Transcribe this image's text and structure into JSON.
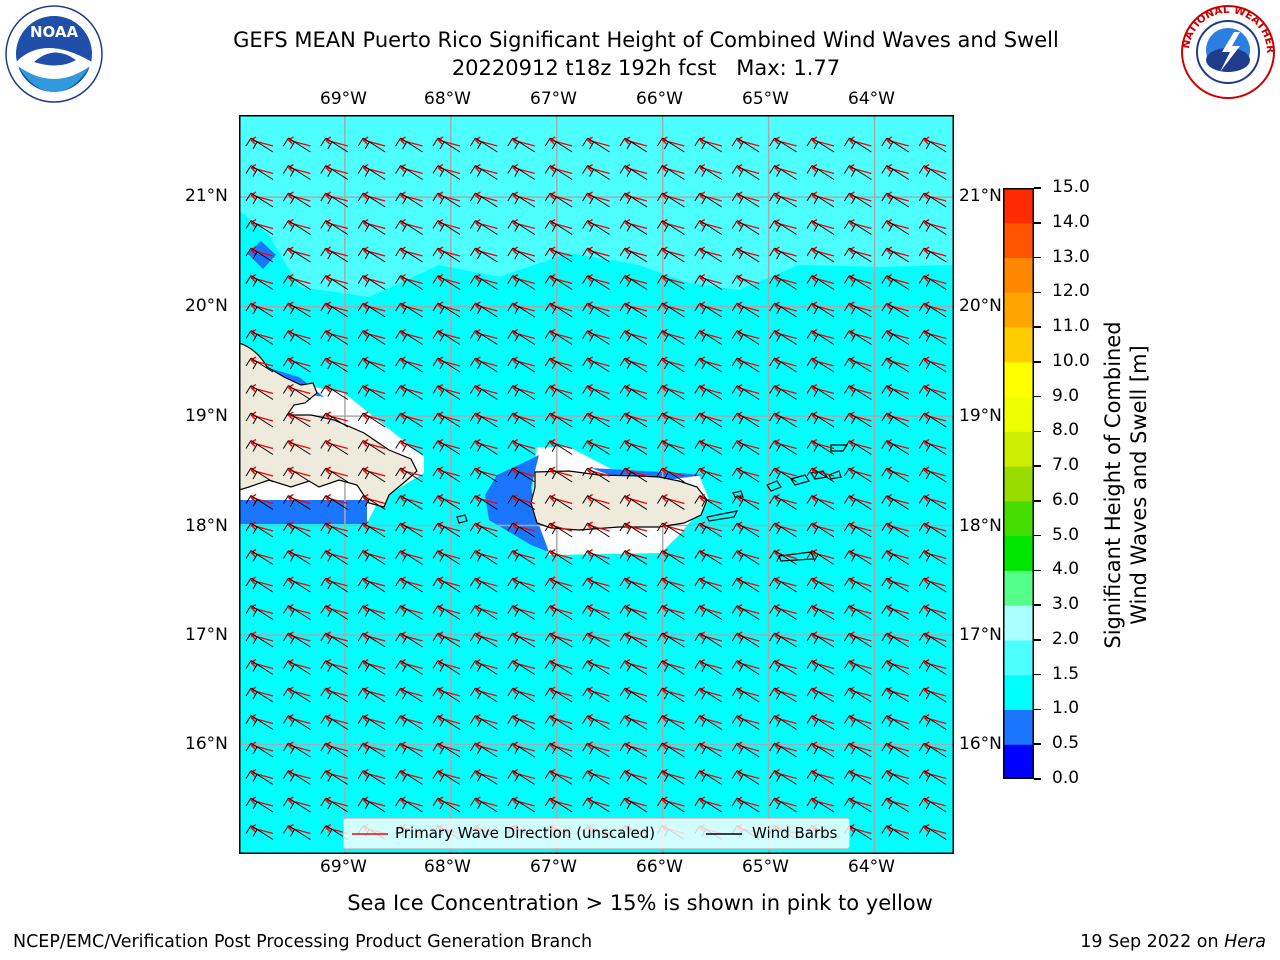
{
  "title": {
    "line1": "GEFS MEAN Puerto Rico Significant Height of Combined Wind Waves and Swell",
    "line2": "20220912 t18z 192h fcst   Max: 1.77"
  },
  "logos": {
    "left": {
      "name": "noaa-logo",
      "text": "NOAA",
      "ring_text": "NATIONAL OCEANIC AND ATMOSPHERIC ADMINISTRATION · U.S. DEPARTMENT OF COMMERCE"
    },
    "right": {
      "name": "nws-logo",
      "ring_text": "NATIONAL WEATHER SERVICE"
    }
  },
  "map": {
    "lon_labels": [
      "69°W",
      "68°W",
      "67°W",
      "66°W",
      "65°W",
      "64°W"
    ],
    "lat_labels": [
      "21°N",
      "20°N",
      "19°N",
      "18°N",
      "17°N",
      "16°N"
    ],
    "lon_range": [
      -70.0,
      -63.25
    ],
    "lat_range": [
      15.0,
      21.75
    ],
    "background_color": "#00ffff",
    "land_color": "#eeebdc",
    "wave_arrow_color": "#ff0000",
    "wind_barb_color": "#000000",
    "legend": {
      "wave": "Primary Wave Direction (unscaled)",
      "wind": "Wind Barbs"
    }
  },
  "colorbar": {
    "label_line1": "Significant Height of Combined",
    "label_line2": "Wind Waves and Swell [m]",
    "ticks": [
      "0.0",
      "0.5",
      "1.0",
      "1.5",
      "2.0",
      "3.0",
      "4.0",
      "5.0",
      "6.0",
      "7.0",
      "8.0",
      "9.0",
      "10.0",
      "11.0",
      "12.0",
      "13.0",
      "14.0",
      "15.0"
    ],
    "colors": [
      "#0000ff",
      "#1a75ff",
      "#00ffff",
      "#4dffff",
      "#aaffff",
      "#55ff88",
      "#00e600",
      "#44dd00",
      "#99dd00",
      "#ccee00",
      "#eeff00",
      "#ffff00",
      "#ffcc00",
      "#ffa500",
      "#ff8800",
      "#ff5500",
      "#ff2a00"
    ]
  },
  "subtitle": "Sea Ice Concentration > 15% is shown in pink to yellow",
  "footer": {
    "left": "NCEP/EMC/Verification Post Processing Product Generation Branch",
    "right_prefix": "19 Sep 2022 on ",
    "right_host": "Hera"
  }
}
